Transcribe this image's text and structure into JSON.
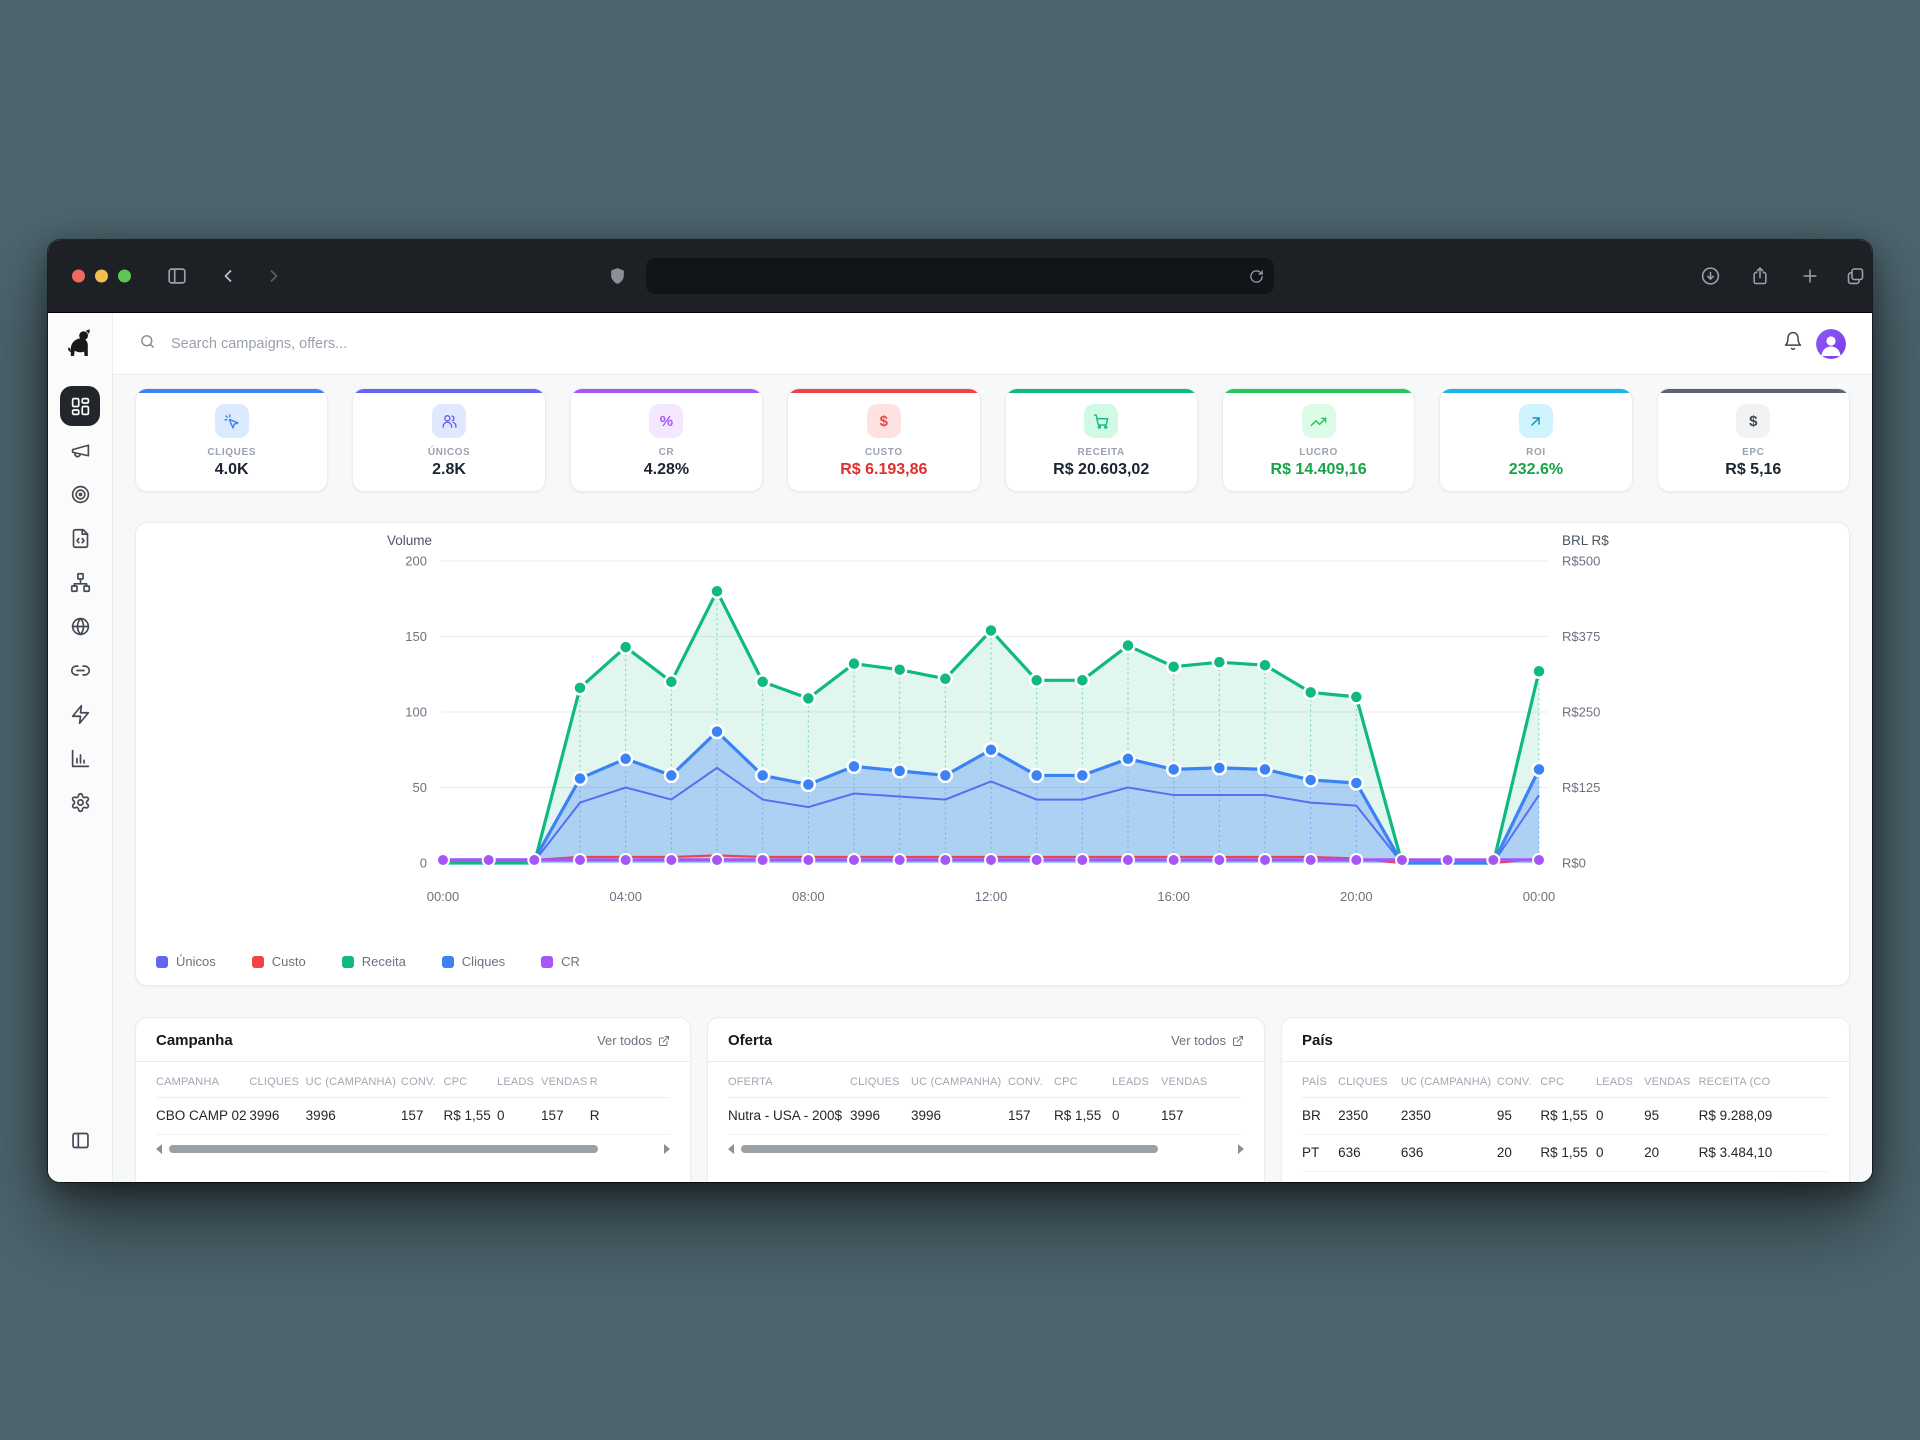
{
  "browser": {
    "url_value": "",
    "icons": [
      "sidebar-toggle",
      "back",
      "forward",
      "shield",
      "reload",
      "download",
      "share",
      "new-tab",
      "tabs-overview"
    ]
  },
  "topbar": {
    "search_placeholder": "Search campaigns, offers..."
  },
  "sidebar": {
    "items": [
      "dashboard",
      "campaigns",
      "targets",
      "landing-pages",
      "flows",
      "domains",
      "links",
      "automations",
      "reports",
      "settings"
    ],
    "bottom": "collapse-panel"
  },
  "kpis": [
    {
      "label": "CLIQUES",
      "value": "4.0K",
      "accent": "#3b82f6",
      "chip_bg": "#dbeafe",
      "chip_color": "#3b82f6",
      "icon": "cursor-click-icon",
      "value_color": "#1c2430"
    },
    {
      "label": "ÚNICOS",
      "value": "2.8K",
      "accent": "#6366f1",
      "chip_bg": "#e0e7ff",
      "chip_color": "#6366f1",
      "icon": "users-icon",
      "value_color": "#1c2430"
    },
    {
      "label": "CR",
      "value": "4.28%",
      "accent": "#a855f7",
      "chip_bg": "#f3e8ff",
      "chip_color": "#a855f7",
      "icon": "percent-icon",
      "value_color": "#1c2430"
    },
    {
      "label": "CUSTO",
      "value": "R$ 6.193,86",
      "accent": "#ef4444",
      "chip_bg": "#fee2e2",
      "chip_color": "#ef4444",
      "icon": "dollar-icon",
      "value_color": "#e02d2d"
    },
    {
      "label": "RECEITA",
      "value": "R$ 20.603,02",
      "accent": "#10b981",
      "chip_bg": "#d1fae5",
      "chip_color": "#10b981",
      "icon": "cart-icon",
      "value_color": "#1c2430"
    },
    {
      "label": "LUCRO",
      "value": "R$ 14.409,16",
      "accent": "#22c55e",
      "chip_bg": "#dcfce7",
      "chip_color": "#22c55e",
      "icon": "trending-up-icon",
      "value_color": "#16a34a"
    },
    {
      "label": "ROI",
      "value": "232.6%",
      "accent": "#1cb5e8",
      "chip_bg": "#cff4fe",
      "chip_color": "#0891b2",
      "icon": "arrow-up-right-icon",
      "value_color": "#16a34a"
    },
    {
      "label": "EPC",
      "value": "R$ 5,16",
      "accent": "#5b6470",
      "chip_bg": "#f1f2f4",
      "chip_color": "#3f4750",
      "icon": "dollar-icon",
      "value_color": "#1c2430"
    }
  ],
  "chart_data": {
    "type": "area",
    "x": [
      "00:00",
      "01:00",
      "02:00",
      "03:00",
      "04:00",
      "05:00",
      "06:00",
      "07:00",
      "08:00",
      "09:00",
      "10:00",
      "11:00",
      "12:00",
      "13:00",
      "14:00",
      "15:00",
      "16:00",
      "17:00",
      "18:00",
      "19:00",
      "20:00",
      "21:00",
      "22:00",
      "23:00",
      "00:00"
    ],
    "x_tick_indices": [
      0,
      4,
      8,
      12,
      16,
      20,
      24
    ],
    "y_left": {
      "title": "Volume",
      "ticks": [
        0,
        50,
        100,
        150,
        200
      ],
      "max": 200
    },
    "y_right": {
      "title": "BRL R$",
      "tick_labels": [
        "R$0",
        "R$125",
        "R$250",
        "R$375",
        "R$500"
      ]
    },
    "grid": true,
    "legend_position": "bottom-left",
    "series": [
      {
        "name": "Únicos",
        "color": "#6366f1",
        "area": false,
        "dots": false,
        "values": [
          1,
          1,
          1,
          40,
          50,
          42,
          63,
          42,
          37,
          46,
          44,
          42,
          54,
          42,
          42,
          50,
          45,
          45,
          45,
          40,
          38,
          0,
          0,
          0,
          45
        ]
      },
      {
        "name": "Custo",
        "color": "#ef4444",
        "area": false,
        "dots": false,
        "values": [
          2,
          2,
          2,
          4,
          4,
          4,
          5,
          4,
          4,
          4,
          4,
          4,
          4,
          4,
          4,
          4,
          4,
          4,
          4,
          4,
          3,
          0,
          0,
          0,
          3
        ]
      },
      {
        "name": "Receita",
        "color": "#10b981",
        "area": true,
        "dots": true,
        "values": [
          0,
          0,
          0,
          116,
          143,
          120,
          180,
          120,
          109,
          132,
          128,
          122,
          154,
          121,
          121,
          144,
          130,
          133,
          131,
          113,
          110,
          0,
          0,
          0,
          127
        ]
      },
      {
        "name": "Cliques",
        "color": "#3b82f6",
        "area": true,
        "dots": true,
        "values": [
          2,
          2,
          2,
          56,
          69,
          58,
          87,
          58,
          52,
          64,
          61,
          58,
          75,
          58,
          58,
          69,
          62,
          63,
          62,
          55,
          53,
          0,
          0,
          0,
          62
        ]
      },
      {
        "name": "CR",
        "color": "#a855f7",
        "area": false,
        "dots": true,
        "values": [
          2,
          2,
          2,
          2,
          2,
          2,
          2,
          2,
          2,
          2,
          2,
          2,
          2,
          2,
          2,
          2,
          2,
          2,
          2,
          2,
          2,
          2,
          2,
          2,
          2
        ]
      }
    ]
  },
  "tables": {
    "campanha": {
      "title": "Campanha",
      "link_label": "Ver todos",
      "columns": [
        "CAMPANHA",
        "CLIQUES",
        "UC (CAMPANHA)",
        "CONV.",
        "CPC",
        "LEADS",
        "VENDAS",
        "R"
      ],
      "rows": [
        [
          "CBO CAMP 02",
          "3996",
          "3996",
          "157",
          "R$ 1,55",
          "0",
          "157",
          "R"
        ]
      ]
    },
    "oferta": {
      "title": "Oferta",
      "link_label": "Ver todos",
      "columns": [
        "OFERTA",
        "CLIQUES",
        "UC (CAMPANHA)",
        "CONV.",
        "CPC",
        "LEADS",
        "VENDAS"
      ],
      "rows": [
        [
          "Nutra - USA - 200$",
          "3996",
          "3996",
          "157",
          "R$ 1,55",
          "0",
          "157"
        ]
      ]
    },
    "pais": {
      "title": "País",
      "columns": [
        "PAÍS",
        "CLIQUES",
        "UC (CAMPANHA)",
        "CONV.",
        "CPC",
        "LEADS",
        "VENDAS",
        "RECEITA (CO"
      ],
      "rows": [
        [
          "BR",
          "2350",
          "2350",
          "95",
          "R$ 1,55",
          "0",
          "95",
          "R$ 9.288,09"
        ],
        [
          "PT",
          "636",
          "636",
          "20",
          "R$ 1,55",
          "0",
          "20",
          "R$ 3.484,10"
        ]
      ]
    }
  }
}
